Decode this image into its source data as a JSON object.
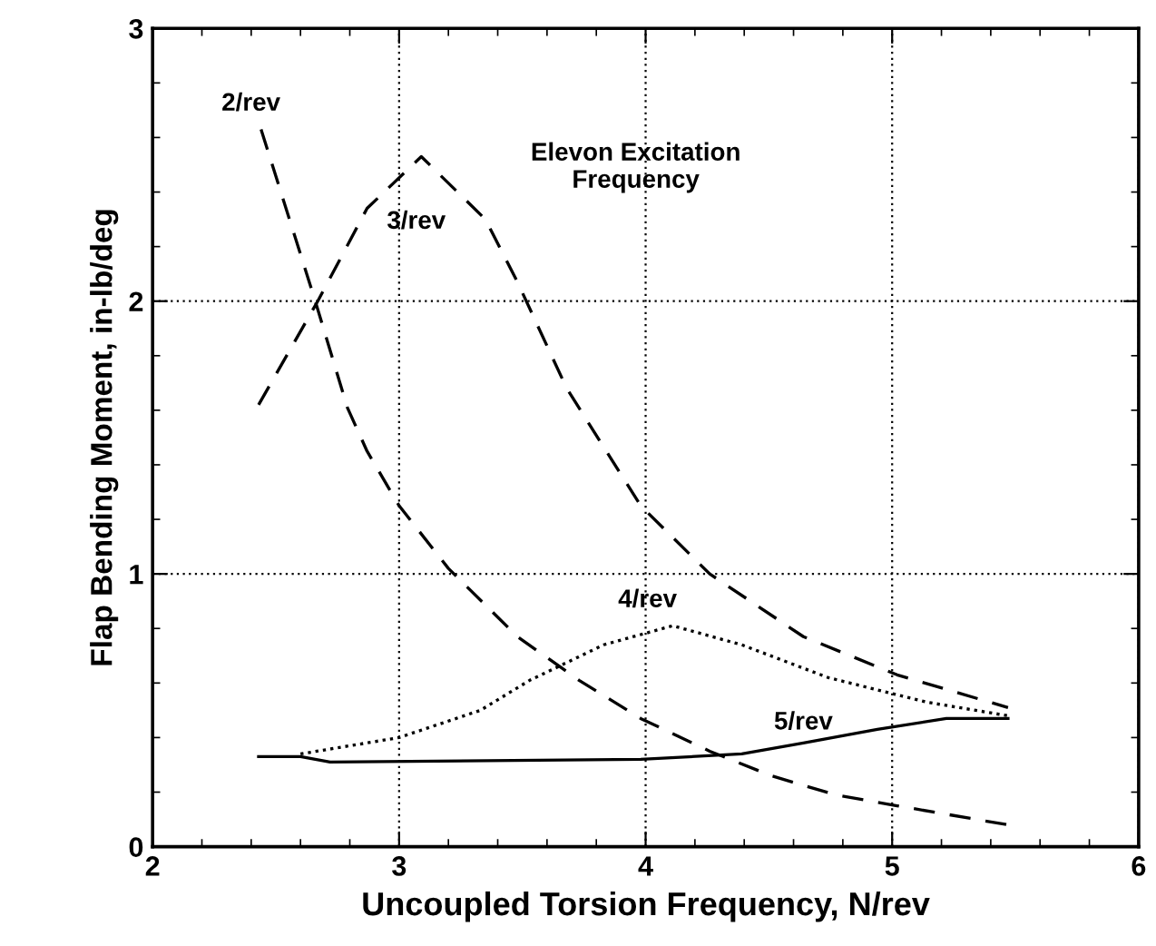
{
  "chart_data": {
    "type": "line",
    "xlabel": "Uncoupled Torsion Frequency, N/rev",
    "ylabel": "Flap Bending Moment, in-lb/deg",
    "legend_title": "Elevon Excitation\nFrequency",
    "xlim": [
      2,
      6
    ],
    "xticks": [
      2,
      3,
      4,
      5,
      6
    ],
    "ylim": [
      0,
      3
    ],
    "yticks": [
      0,
      1,
      2,
      3
    ],
    "grid": true,
    "series": [
      {
        "name": "2/rev",
        "color": "#000000",
        "line_style": "dashed",
        "x": [
          2.44,
          2.66,
          2.79,
          2.87,
          3.0,
          3.2,
          3.48,
          3.73,
          3.98,
          4.26,
          4.51,
          4.77,
          5.02,
          5.47
        ],
        "values": [
          2.63,
          2.0,
          1.61,
          1.45,
          1.25,
          1.02,
          0.77,
          0.61,
          0.47,
          0.35,
          0.26,
          0.19,
          0.15,
          0.08
        ]
      },
      {
        "name": "3/rev",
        "color": "#000000",
        "line_style": "dashed",
        "x": [
          2.43,
          2.67,
          2.87,
          3.09,
          3.35,
          3.48,
          3.68,
          3.98,
          4.26,
          4.64,
          5.02,
          5.47
        ],
        "values": [
          1.62,
          2.0,
          2.34,
          2.53,
          2.3,
          2.07,
          1.68,
          1.25,
          1.0,
          0.77,
          0.63,
          0.51
        ]
      },
      {
        "name": "4/rev",
        "color": "#000000",
        "line_style": "dotted",
        "x": [
          2.6,
          3.0,
          3.33,
          3.53,
          3.83,
          4.11,
          4.39,
          4.74,
          5.14,
          5.47
        ],
        "values": [
          0.34,
          0.4,
          0.5,
          0.61,
          0.74,
          0.81,
          0.74,
          0.62,
          0.53,
          0.48
        ]
      },
      {
        "name": "5/rev",
        "color": "#000000",
        "line_style": "solid",
        "x": [
          2.43,
          2.6,
          2.72,
          3.98,
          4.39,
          4.64,
          4.94,
          5.22,
          5.47
        ],
        "values": [
          0.33,
          0.33,
          0.31,
          0.32,
          0.34,
          0.38,
          0.43,
          0.47,
          0.47
        ]
      }
    ]
  }
}
